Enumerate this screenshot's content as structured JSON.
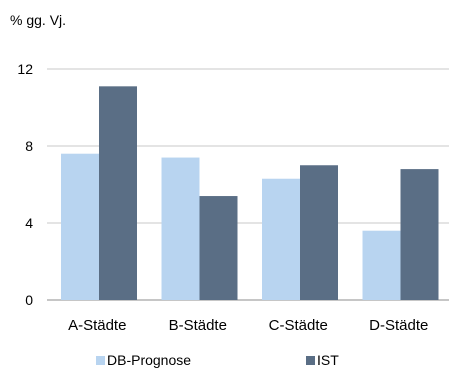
{
  "chart_data": {
    "type": "bar",
    "ylabel": "% gg. Vj.",
    "categories": [
      "A-Städte",
      "B-Städte",
      "C-Städte",
      "D-Städte"
    ],
    "series": [
      {
        "name": "DB-Prognose",
        "values": [
          7.6,
          7.4,
          6.3,
          3.6
        ],
        "color": "#b8d4f0"
      },
      {
        "name": "IST",
        "values": [
          11.1,
          5.4,
          7.0,
          6.8
        ],
        "color": "#5a6e85"
      }
    ],
    "ylim": [
      0,
      12
    ],
    "yticks": [
      0,
      4,
      8,
      12
    ],
    "grid": true,
    "legend": "bottom"
  }
}
